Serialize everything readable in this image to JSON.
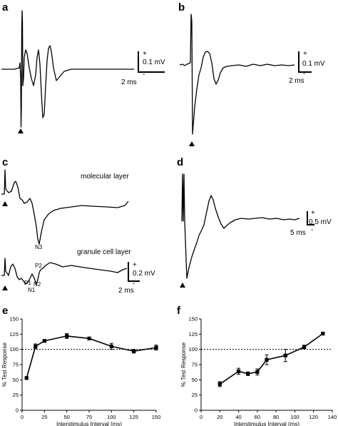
{
  "panels": {
    "a": {
      "letter": "a",
      "scale": {
        "v_label": "0.1 mV",
        "t_label": "2 ms",
        "plus": "+",
        "minus": "-"
      }
    },
    "b": {
      "letter": "b",
      "scale": {
        "v_label": "0.1 mV",
        "t_label": "2 ms",
        "plus": "+",
        "minus": "-"
      }
    },
    "c": {
      "letter": "c",
      "top_label": "molecular layer",
      "bottom_label": "granule cell layer",
      "peaks": {
        "n3": "N3",
        "p1": "P1",
        "n1": "N1",
        "n2": "N2",
        "p2": "P2"
      },
      "scale": {
        "v_label": "0.2 mV",
        "t_label": "2 ms",
        "plus": "+",
        "minus": "-"
      }
    },
    "d": {
      "letter": "d",
      "scale": {
        "v_label": "0.5 mV",
        "t_label": "5 ms",
        "plus": "+",
        "minus": "-"
      }
    },
    "stimulus_marker": "triangle"
  },
  "chart_data": [
    {
      "panel": "e",
      "type": "line",
      "xlabel": "Interstimulus Interval  (ms)",
      "ylabel": "% Test Response",
      "xlim": [
        0,
        150
      ],
      "ylim": [
        0,
        150
      ],
      "xticks": [
        "0",
        "25",
        "50",
        "75",
        "100",
        "125",
        "150"
      ],
      "yticks": [
        "0",
        "25",
        "50",
        "75",
        "100",
        "125",
        "150"
      ],
      "reference_line": 100,
      "series": [
        {
          "x": [
            5,
            15,
            25,
            50,
            75,
            100,
            125,
            150
          ],
          "y": [
            53,
            105,
            114,
            122,
            118,
            105,
            97,
            103
          ],
          "err": [
            2,
            4,
            2,
            4,
            2,
            5,
            3,
            4
          ]
        }
      ]
    },
    {
      "panel": "f",
      "type": "line",
      "xlabel": "Interstimulus Interval  (ms)",
      "ylabel": "% Test Response",
      "xlim": [
        0,
        140
      ],
      "ylim": [
        0,
        150
      ],
      "xticks": [
        "0",
        "20",
        "40",
        "60",
        "80",
        "100",
        "120",
        "140"
      ],
      "yticks": [
        "0",
        "25",
        "50",
        "75",
        "100",
        "125",
        "150"
      ],
      "reference_line": 100,
      "series": [
        {
          "x": [
            20,
            40,
            50,
            60,
            70,
            90,
            110,
            130
          ],
          "y": [
            43,
            64,
            60,
            63,
            83,
            90,
            104,
            126
          ],
          "err": [
            4,
            5,
            3,
            5,
            8,
            10,
            3,
            1
          ]
        }
      ]
    }
  ]
}
